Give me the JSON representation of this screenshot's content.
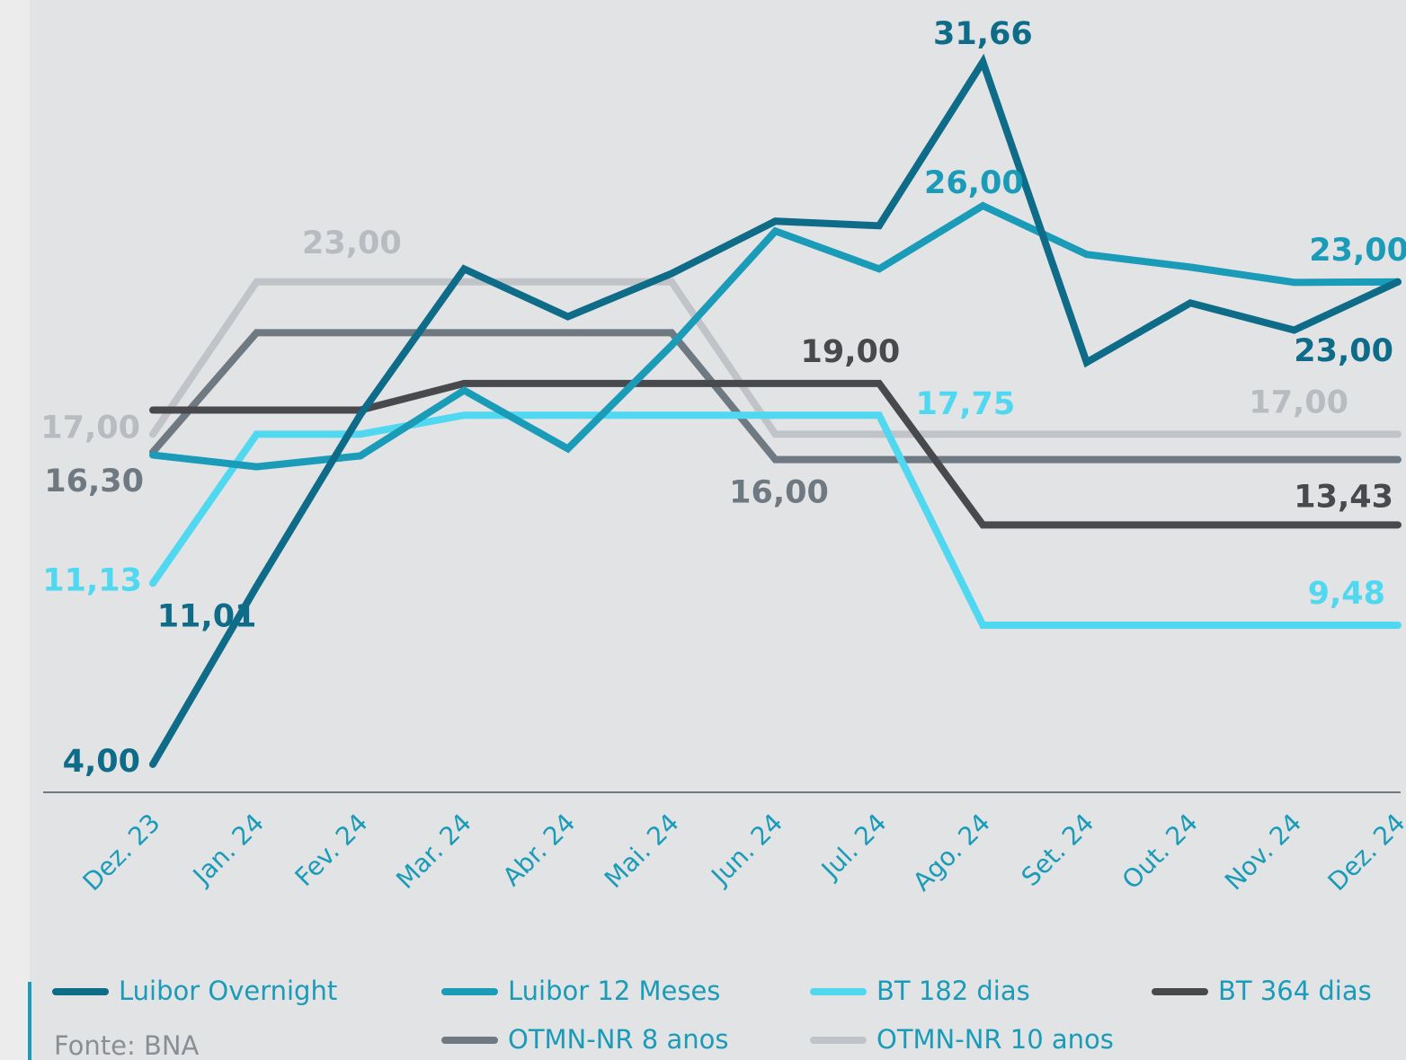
{
  "chart_data": {
    "type": "line",
    "categories": [
      "Dez. 23",
      "Jan. 24",
      "Fev. 24",
      "Mar. 24",
      "Abr. 24",
      "Mai. 24",
      "Jun. 24",
      "Jul. 24",
      "Ago. 24",
      "Set. 24",
      "Out. 24",
      "Nov. 24",
      "Dez. 24"
    ],
    "ylim": [
      2.9,
      34.1
    ],
    "series": [
      {
        "name": "Luibor Overnight",
        "color": "#0e6c88",
        "values": [
          4.0,
          11.01,
          17.77,
          23.51,
          21.63,
          23.33,
          25.39,
          25.21,
          31.66,
          19.83,
          22.17,
          21.1,
          23.0
        ],
        "value_labels": [
          "4,00",
          "11,01",
          null,
          null,
          null,
          null,
          null,
          null,
          "31,66",
          null,
          null,
          null,
          "23,00"
        ]
      },
      {
        "name": "Luibor 12 Meses",
        "color": "#1a9bb8",
        "values": [
          16.18,
          15.72,
          16.15,
          18.73,
          16.43,
          20.5,
          25.0,
          23.51,
          26.0,
          24.08,
          23.58,
          22.98,
          23.0
        ],
        "value_labels": [
          null,
          null,
          null,
          null,
          null,
          null,
          null,
          null,
          "26,00",
          null,
          null,
          null,
          "23,00"
        ]
      },
      {
        "name": "BT 182 dias",
        "color": "#4fd8f0",
        "values": [
          11.13,
          17.0,
          17.0,
          17.75,
          17.75,
          17.75,
          17.75,
          17.75,
          9.48,
          9.48,
          9.48,
          9.48,
          9.48
        ],
        "value_labels": [
          "11,13",
          null,
          null,
          null,
          null,
          null,
          null,
          "17,75",
          null,
          null,
          null,
          null,
          "9,48"
        ]
      },
      {
        "name": "BT 364 dias",
        "color": "#47494d",
        "values": [
          17.95,
          17.95,
          17.95,
          19.0,
          19.0,
          19.0,
          19.0,
          19.0,
          13.43,
          13.43,
          13.43,
          13.43,
          13.43
        ],
        "value_labels": [
          null,
          null,
          null,
          null,
          null,
          null,
          null,
          "19,00",
          null,
          null,
          null,
          null,
          "13,43"
        ]
      },
      {
        "name": "OTMN-NR 8 anos",
        "color": "#6f7982",
        "values": [
          16.3,
          21.0,
          21.0,
          21.0,
          21.0,
          21.0,
          16.0,
          16.0,
          16.0,
          16.0,
          16.0,
          16.0,
          16.0
        ],
        "value_labels": [
          "16,30",
          null,
          null,
          null,
          null,
          null,
          "16,00",
          null,
          null,
          null,
          null,
          null,
          null
        ]
      },
      {
        "name": "OTMN-NR 10 anos",
        "color": "#c0c4c8",
        "values": [
          17.0,
          23.0,
          23.0,
          23.0,
          23.0,
          23.0,
          17.0,
          17.0,
          17.0,
          17.0,
          17.0,
          17.0,
          17.0
        ],
        "value_labels": [
          "17,00",
          "23,00",
          null,
          null,
          null,
          null,
          null,
          null,
          null,
          null,
          null,
          null,
          "17,00"
        ]
      }
    ],
    "source": "Fonte: BNA"
  }
}
